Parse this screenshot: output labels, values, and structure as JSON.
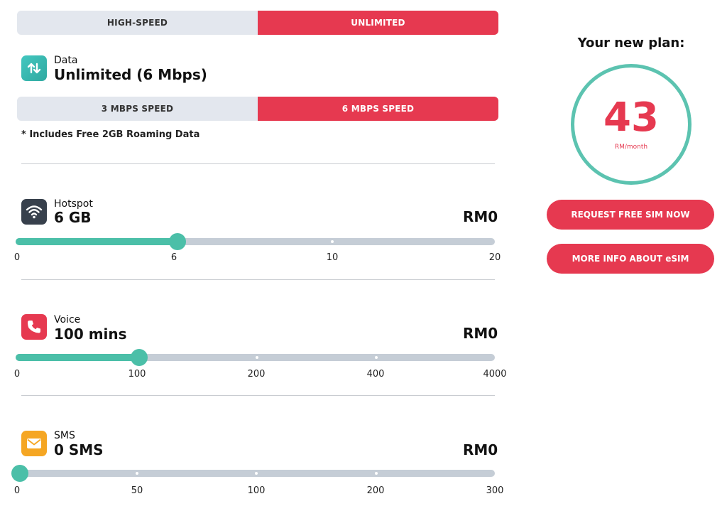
{
  "plan_type": {
    "options": [
      "HIGH-SPEED",
      "UNLIMITED"
    ],
    "selected": "UNLIMITED"
  },
  "data": {
    "icon": "arrows-updown-icon",
    "label": "Data",
    "value": "Unlimited (6 Mbps)",
    "speed_options": [
      "3 MBPS SPEED",
      "6 MBPS SPEED"
    ],
    "speed_selected": "6 MBPS SPEED",
    "note": "* Includes Free 2GB Roaming Data"
  },
  "hotspot": {
    "icon": "wifi-icon",
    "label": "Hotspot",
    "value": "6 GB",
    "price": "RM0",
    "ticks": [
      "0",
      "6",
      "10",
      "20"
    ],
    "selected_index": 1
  },
  "voice": {
    "icon": "phone-icon",
    "label": "Voice",
    "value": "100 mins",
    "price": "RM0",
    "ticks": [
      "0",
      "100",
      "200",
      "400",
      "4000"
    ],
    "selected_index": 1
  },
  "sms": {
    "icon": "envelope-icon",
    "label": "SMS",
    "value": "0 SMS",
    "price": "RM0",
    "ticks": [
      "0",
      "50",
      "100",
      "200",
      "300"
    ],
    "selected_index": 0
  },
  "summary": {
    "title": "Your new plan:",
    "price": "43",
    "unit": "RM/month",
    "request_button": "REQUEST FREE SIM NOW",
    "info_button": "MORE INFO ABOUT eSIM"
  },
  "colors": {
    "accent": "#e63950",
    "teal": "#4bbfa8",
    "track": "#c5cdd6",
    "segment_bg": "#e3e7ee"
  }
}
